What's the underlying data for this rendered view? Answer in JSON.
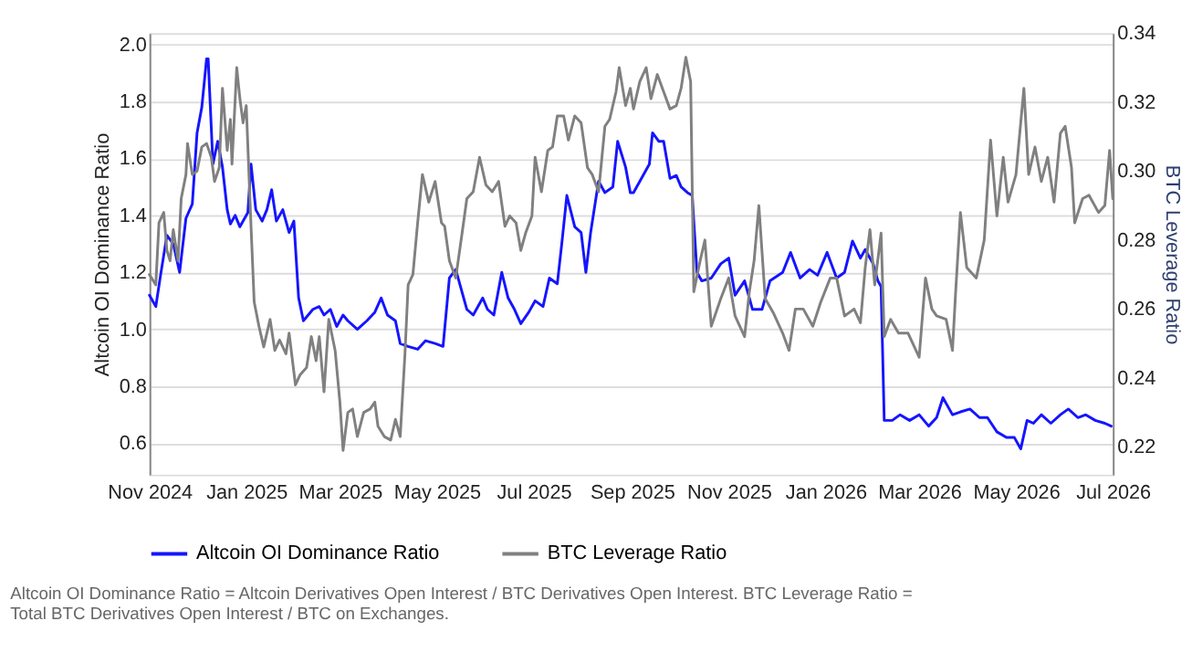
{
  "chart_data": {
    "type": "line",
    "ylabel": "Altcoin OI Dominance Ratio",
    "y2label": "BTC Leverage Ratio",
    "annotations": [
      "Altcoin OI Dominance Ratio = Altcoin Derivatives Open Interest / BTC Derivatives Open Interest. BTC Leverage Ratio = Total BTC Derivatives Open Interest / BTC on Exchanges."
    ],
    "xlim": [
      "2024-11-01",
      "2026-07-01"
    ],
    "xticks": [
      {
        "value": "2024-11-01",
        "label": "Nov 2024"
      },
      {
        "value": "2025-01-01",
        "label": "Jan 2025"
      },
      {
        "value": "2025-03-01",
        "label": "Mar 2025"
      },
      {
        "value": "2025-05-01",
        "label": "May 2025"
      },
      {
        "value": "2025-07-01",
        "label": "Jul 2025"
      },
      {
        "value": "2025-09-01",
        "label": "Sep 2025"
      },
      {
        "value": "2025-11-01",
        "label": "Nov 2025"
      },
      {
        "value": "2026-01-01",
        "label": "Jan 2026"
      },
      {
        "value": "2026-03-01",
        "label": "Mar 2026"
      },
      {
        "value": "2026-05-01",
        "label": "May 2026"
      },
      {
        "value": "2026-07-01",
        "label": "Jul 2026"
      }
    ],
    "ylim": [
      0.49,
      2.04
    ],
    "yticks": [
      0.6,
      0.8,
      {
        "value": 1,
        "label": "1.0"
      },
      1.2,
      1.4,
      1.6,
      1.8,
      {
        "value": 2,
        "label": "2.0"
      }
    ],
    "y2lim": [
      0.212,
      0.34
    ],
    "y2ticks": [
      0.22,
      0.24,
      0.26,
      0.28,
      {
        "value": 0.3,
        "label": "0.30"
      },
      0.32,
      0.34
    ],
    "grid": "y",
    "legend": "bottom",
    "series": [
      {
        "name": "Altcoin OI Dominance Ratio",
        "color": "#1515ff",
        "axis": "y",
        "x": [
          "2024-11-01",
          "2024-11-05",
          "2024-11-08",
          "2024-11-12",
          "2024-11-16",
          "2024-11-20",
          "2024-11-24",
          "2024-11-28",
          "2024-12-01",
          "2024-12-04",
          "2024-12-07",
          "2024-12-08",
          "2024-12-11",
          "2024-12-14",
          "2024-12-17",
          "2024-12-20",
          "2024-12-22",
          "2024-12-25",
          "2024-12-28",
          "2025-01-02",
          "2025-01-04",
          "2025-01-07",
          "2025-01-11",
          "2025-01-14",
          "2025-01-17",
          "2025-01-20",
          "2025-01-24",
          "2025-01-28",
          "2025-01-31",
          "2025-02-03",
          "2025-02-06",
          "2025-02-12",
          "2025-02-16",
          "2025-02-19",
          "2025-02-23",
          "2025-02-27",
          "2025-03-03",
          "2025-03-06",
          "2025-03-12",
          "2025-03-18",
          "2025-03-23",
          "2025-03-27",
          "2025-03-31",
          "2025-04-05",
          "2025-04-08",
          "2025-04-13",
          "2025-04-19",
          "2025-04-24",
          "2025-04-30",
          "2025-05-05",
          "2025-05-09",
          "2025-05-13",
          "2025-05-17",
          "2025-05-20",
          "2025-05-24",
          "2025-05-30",
          "2025-06-02",
          "2025-06-06",
          "2025-06-11",
          "2025-06-15",
          "2025-06-19",
          "2025-06-23",
          "2025-06-28",
          "2025-07-02",
          "2025-07-07",
          "2025-07-11",
          "2025-07-16",
          "2025-07-19",
          "2025-07-22",
          "2025-07-27",
          "2025-07-31",
          "2025-08-03",
          "2025-08-06",
          "2025-08-11",
          "2025-08-15",
          "2025-08-20",
          "2025-08-23",
          "2025-08-28",
          "2025-08-31",
          "2025-09-02",
          "2025-09-08",
          "2025-09-12",
          "2025-09-14",
          "2025-09-18",
          "2025-09-21",
          "2025-09-25",
          "2025-09-29",
          "2025-10-02",
          "2025-10-06",
          "2025-10-09",
          "2025-10-12",
          "2025-10-15",
          "2025-10-21",
          "2025-10-27",
          "2025-11-01",
          "2025-11-05",
          "2025-11-11",
          "2025-11-16",
          "2025-11-22",
          "2025-11-27",
          "2025-12-05",
          "2025-12-10",
          "2025-12-16",
          "2025-12-22",
          "2025-12-27",
          "2026-01-02",
          "2026-01-08",
          "2026-01-13",
          "2026-01-18",
          "2026-01-23",
          "2026-01-26",
          "2026-01-31",
          "2026-02-03",
          "2026-02-05",
          "2026-02-07",
          "2026-02-12",
          "2026-02-17",
          "2026-02-23",
          "2026-03-01",
          "2026-03-07",
          "2026-03-12",
          "2026-03-16",
          "2026-03-22",
          "2026-03-27",
          "2026-04-02",
          "2026-04-08",
          "2026-04-13",
          "2026-04-19",
          "2026-04-25",
          "2026-04-30",
          "2026-05-04",
          "2026-05-08",
          "2026-05-12",
          "2026-05-17",
          "2026-05-23",
          "2026-05-29",
          "2026-06-03",
          "2026-06-09",
          "2026-06-14",
          "2026-06-20",
          "2026-06-26",
          "2026-06-30"
        ],
        "values": [
          1.12,
          1.08,
          1.19,
          1.33,
          1.3,
          1.2,
          1.39,
          1.44,
          1.69,
          1.78,
          1.95,
          1.95,
          1.58,
          1.66,
          1.57,
          1.42,
          1.37,
          1.4,
          1.36,
          1.41,
          1.58,
          1.42,
          1.38,
          1.42,
          1.49,
          1.38,
          1.42,
          1.34,
          1.38,
          1.11,
          1.03,
          1.07,
          1.08,
          1.05,
          1.07,
          1.01,
          1.05,
          1.03,
          1.0,
          1.03,
          1.06,
          1.11,
          1.05,
          1.03,
          0.95,
          0.94,
          0.93,
          0.96,
          0.95,
          0.94,
          1.18,
          1.21,
          1.13,
          1.07,
          1.05,
          1.11,
          1.07,
          1.05,
          1.2,
          1.11,
          1.07,
          1.02,
          1.06,
          1.1,
          1.08,
          1.18,
          1.16,
          1.31,
          1.47,
          1.36,
          1.34,
          1.2,
          1.34,
          1.52,
          1.48,
          1.5,
          1.66,
          1.57,
          1.48,
          1.48,
          1.54,
          1.58,
          1.69,
          1.66,
          1.66,
          1.53,
          1.54,
          1.5,
          1.48,
          1.47,
          1.2,
          1.17,
          1.18,
          1.23,
          1.25,
          1.12,
          1.17,
          1.07,
          1.07,
          1.17,
          1.2,
          1.27,
          1.18,
          1.21,
          1.19,
          1.27,
          1.18,
          1.2,
          1.31,
          1.25,
          1.28,
          1.23,
          1.17,
          1.15,
          0.68,
          0.68,
          0.7,
          0.68,
          0.7,
          0.66,
          0.69,
          0.76,
          0.7,
          0.71,
          0.72,
          0.69,
          0.69,
          0.64,
          0.62,
          0.62,
          0.58,
          0.68,
          0.67,
          0.7,
          0.67,
          0.7,
          0.72,
          0.69,
          0.7,
          0.68,
          0.67,
          0.66
        ]
      },
      {
        "name": "BTC Leverage Ratio",
        "color": "#808080",
        "axis": "y2",
        "x": [
          "2024-11-01",
          "2024-11-05",
          "2024-11-07",
          "2024-11-10",
          "2024-11-12",
          "2024-11-14",
          "2024-11-16",
          "2024-11-19",
          "2024-11-21",
          "2024-11-24",
          "2024-11-25",
          "2024-11-28",
          "2024-12-01",
          "2024-12-04",
          "2024-12-07",
          "2024-12-10",
          "2024-12-12",
          "2024-12-15",
          "2024-12-17",
          "2024-12-20",
          "2024-12-22",
          "2024-12-23",
          "2024-12-26",
          "2024-12-28",
          "2024-12-30",
          "2025-01-01",
          "2025-01-04",
          "2025-01-06",
          "2025-01-09",
          "2025-01-12",
          "2025-01-16",
          "2025-01-19",
          "2025-01-22",
          "2025-01-26",
          "2025-01-28",
          "2025-02-01",
          "2025-02-04",
          "2025-02-08",
          "2025-02-11",
          "2025-02-14",
          "2025-02-16",
          "2025-02-19",
          "2025-02-22",
          "2025-02-26",
          "2025-03-01",
          "2025-03-03",
          "2025-03-06",
          "2025-03-09",
          "2025-03-12",
          "2025-03-16",
          "2025-03-20",
          "2025-03-23",
          "2025-03-25",
          "2025-03-29",
          "2025-04-02",
          "2025-04-05",
          "2025-04-08",
          "2025-04-11",
          "2025-04-13",
          "2025-04-16",
          "2025-04-19",
          "2025-04-22",
          "2025-04-26",
          "2025-04-30",
          "2025-05-04",
          "2025-05-06",
          "2025-05-09",
          "2025-05-13",
          "2025-05-17",
          "2025-05-20",
          "2025-05-24",
          "2025-05-28",
          "2025-06-01",
          "2025-06-05",
          "2025-06-09",
          "2025-06-13",
          "2025-06-16",
          "2025-06-20",
          "2025-06-23",
          "2025-06-26",
          "2025-06-30",
          "2025-07-02",
          "2025-07-06",
          "2025-07-10",
          "2025-07-13",
          "2025-07-16",
          "2025-07-20",
          "2025-07-23",
          "2025-07-27",
          "2025-07-31",
          "2025-08-04",
          "2025-08-07",
          "2025-08-11",
          "2025-08-15",
          "2025-08-18",
          "2025-08-22",
          "2025-08-24",
          "2025-08-28",
          "2025-08-31",
          "2025-09-02",
          "2025-09-06",
          "2025-09-10",
          "2025-09-13",
          "2025-09-17",
          "2025-09-21",
          "2025-09-25",
          "2025-09-29",
          "2025-10-02",
          "2025-10-05",
          "2025-10-08",
          "2025-10-10",
          "2025-10-14",
          "2025-10-17",
          "2025-10-21",
          "2025-10-27",
          "2025-11-01",
          "2025-11-05",
          "2025-11-11",
          "2025-11-14",
          "2025-11-17",
          "2025-11-20",
          "2025-11-24",
          "2025-11-29",
          "2025-12-05",
          "2025-12-09",
          "2025-12-13",
          "2025-12-18",
          "2025-12-24",
          "2025-12-29",
          "2026-01-04",
          "2026-01-08",
          "2026-01-13",
          "2026-01-19",
          "2026-01-23",
          "2026-01-26",
          "2026-01-29",
          "2026-02-01",
          "2026-02-05",
          "2026-02-07",
          "2026-02-11",
          "2026-02-16",
          "2026-02-22",
          "2026-02-25",
          "2026-03-01",
          "2026-03-05",
          "2026-03-09",
          "2026-03-12",
          "2026-03-18",
          "2026-03-22",
          "2026-03-24",
          "2026-03-27",
          "2026-03-31",
          "2026-04-06",
          "2026-04-11",
          "2026-04-15",
          "2026-04-19",
          "2026-04-23",
          "2026-04-26",
          "2026-05-01",
          "2026-05-06",
          "2026-05-09",
          "2026-05-13",
          "2026-05-17",
          "2026-05-21",
          "2026-05-25",
          "2026-05-29",
          "2026-06-01",
          "2026-06-05",
          "2026-06-07",
          "2026-06-12",
          "2026-06-16",
          "2026-06-22",
          "2026-06-26",
          "2026-06-29",
          "2026-07-01"
        ],
        "values": [
          0.27,
          0.267,
          0.285,
          0.288,
          0.277,
          0.274,
          0.283,
          0.274,
          0.292,
          0.299,
          0.308,
          0.299,
          0.3,
          0.307,
          0.308,
          0.304,
          0.297,
          0.301,
          0.324,
          0.306,
          0.315,
          0.302,
          0.33,
          0.321,
          0.314,
          0.319,
          0.284,
          0.262,
          0.255,
          0.249,
          0.257,
          0.248,
          0.251,
          0.247,
          0.253,
          0.238,
          0.241,
          0.243,
          0.252,
          0.245,
          0.252,
          0.236,
          0.257,
          0.248,
          0.233,
          0.219,
          0.23,
          0.231,
          0.223,
          0.23,
          0.231,
          0.233,
          0.226,
          0.223,
          0.222,
          0.228,
          0.223,
          0.247,
          0.267,
          0.27,
          0.285,
          0.299,
          0.291,
          0.297,
          0.285,
          0.284,
          0.274,
          0.269,
          0.282,
          0.292,
          0.294,
          0.304,
          0.296,
          0.294,
          0.297,
          0.284,
          0.287,
          0.285,
          0.277,
          0.282,
          0.287,
          0.304,
          0.294,
          0.306,
          0.307,
          0.316,
          0.316,
          0.309,
          0.316,
          0.314,
          0.301,
          0.299,
          0.294,
          0.313,
          0.315,
          0.323,
          0.33,
          0.319,
          0.324,
          0.318,
          0.326,
          0.33,
          0.321,
          0.328,
          0.323,
          0.318,
          0.319,
          0.324,
          0.333,
          0.326,
          0.265,
          0.274,
          0.28,
          0.255,
          0.263,
          0.269,
          0.258,
          0.252,
          0.265,
          0.274,
          0.29,
          0.263,
          0.259,
          0.253,
          0.248,
          0.26,
          0.26,
          0.255,
          0.262,
          0.269,
          0.269,
          0.258,
          0.26,
          0.256,
          0.272,
          0.283,
          0.267,
          0.282,
          0.252,
          0.257,
          0.253,
          0.253,
          0.25,
          0.246,
          0.269,
          0.26,
          0.258,
          0.257,
          0.248,
          0.265,
          0.288,
          0.272,
          0.269,
          0.28,
          0.309,
          0.287,
          0.304,
          0.291,
          0.299,
          0.324,
          0.299,
          0.307,
          0.297,
          0.304,
          0.291,
          0.311,
          0.313,
          0.301,
          0.285,
          0.292,
          0.293,
          0.288,
          0.29,
          0.306,
          0.292
        ]
      }
    ]
  }
}
